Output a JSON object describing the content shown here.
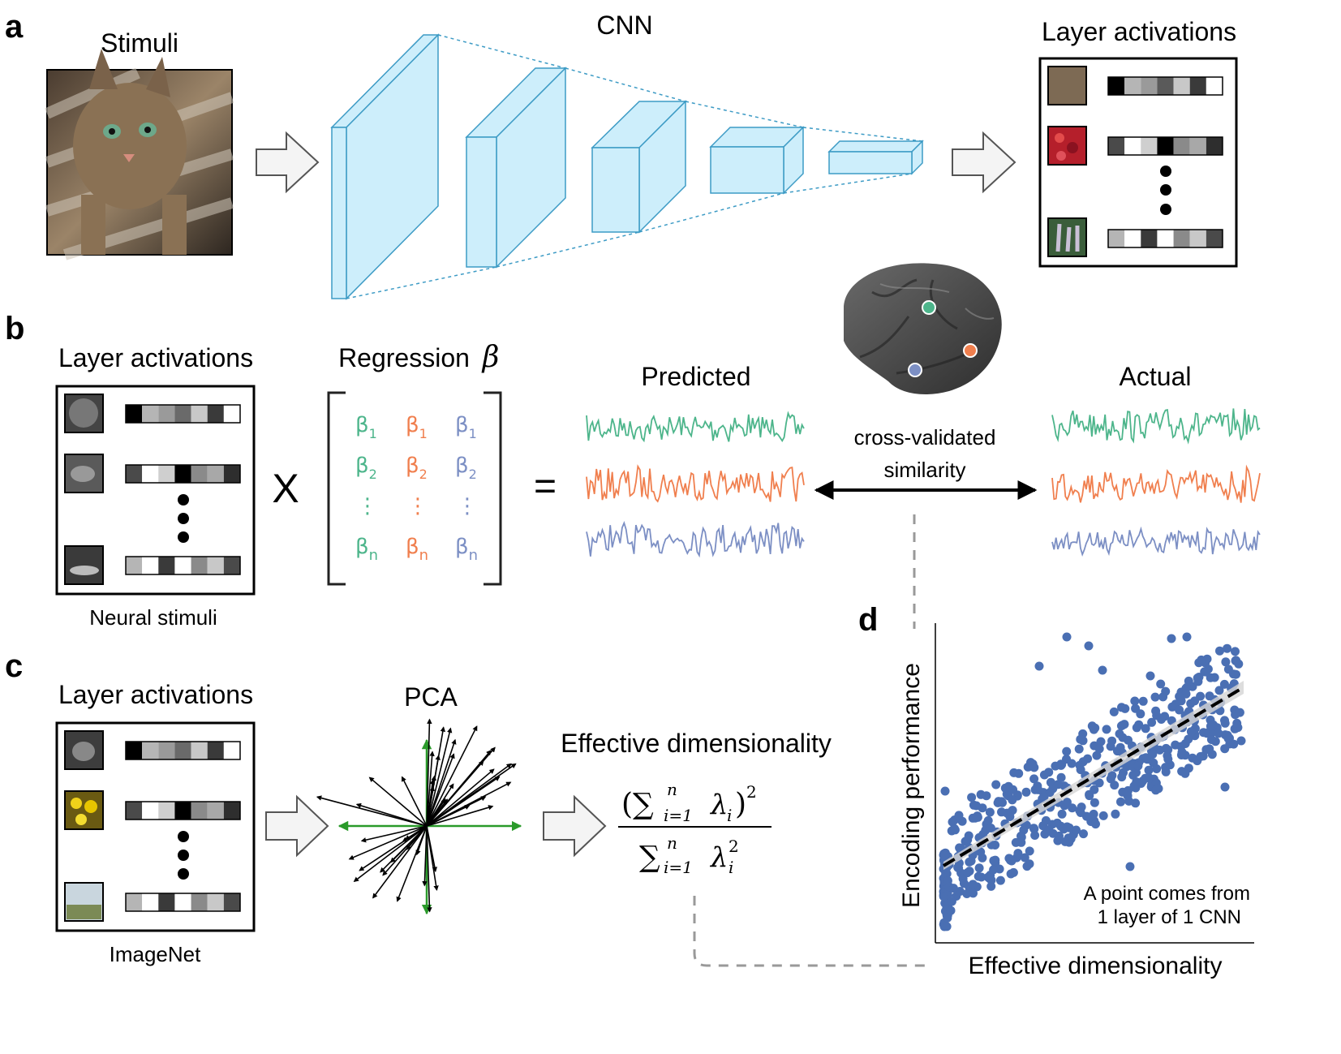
{
  "panel_a": {
    "letter": "a",
    "stimuli_title": "Stimuli",
    "cnn_title": "CNN",
    "layer_activations_title": "Layer activations"
  },
  "panel_b": {
    "letter": "b",
    "layer_activations_title": "Layer activations",
    "regression_title": "Regression",
    "regression_symbol": "β",
    "stimuli_caption": "Neural stimuli",
    "times": "X",
    "equals": "=",
    "predicted_title": "Predicted",
    "actual_title": "Actual",
    "similarity_line1": "cross-validated",
    "similarity_line2": "similarity",
    "beta_sym": "β",
    "beta_sub_1": "1",
    "beta_sub_2": "2",
    "beta_sub_n": "n",
    "colon": "⋮"
  },
  "panel_c": {
    "letter": "c",
    "layer_activations_title": "Layer activations",
    "stimuli_caption": "ImageNet",
    "pca_title": "PCA",
    "ed_title": "Effective dimensionality",
    "formula_num_sum": "(∑",
    "formula_sub": "i=1",
    "formula_sup": "n",
    "formula_lambda": "λ",
    "formula_i": "i",
    "formula_close": ")",
    "formula_sq": "2"
  },
  "panel_d": {
    "letter": "d",
    "ylabel": "Encoding performance",
    "xlabel": "Effective dimensionality",
    "note_line1": "A point comes from",
    "note_line2": "1 layer of 1 CNN"
  },
  "colors": {
    "cnn_fill": "#cdeefb",
    "cnn_stroke": "#3d9bc5",
    "green": "#4db58b",
    "orange": "#f07f4e",
    "blue": "#7c8fc4",
    "scatter": "#4a6fb3",
    "pca_axis": "#2a9a2a"
  }
}
